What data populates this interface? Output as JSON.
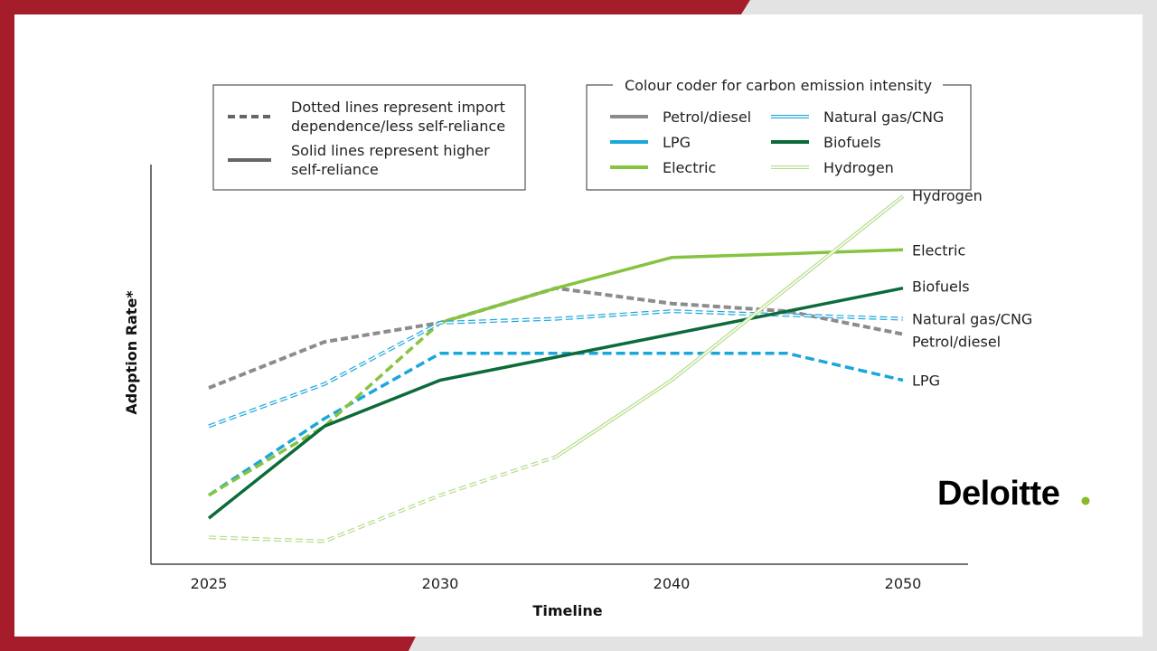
{
  "colors": {
    "frame_red": "#a51c2a",
    "frame_grey": "#e3e3e3",
    "petrol_diesel": "#8c8c8c",
    "lpg": "#1ba6dc",
    "electric": "#86c440",
    "natural_gas_cng": "#1ba6dc",
    "biofuels": "#0c6b3a",
    "hydrogen": "#b6dc8a",
    "brand_dot": "#86bc25"
  },
  "style_legend": {
    "dotted_text_line1": "Dotted lines represent import",
    "dotted_text_line2": "dependence/less self-reliance",
    "solid_text_line1": "Solid lines represent higher",
    "solid_text_line2": "self-reliance"
  },
  "colour_legend": {
    "title": "Colour coder for carbon emission intensity",
    "items": [
      {
        "label": "Petrol/diesel",
        "icon": "grey-solid-swatch"
      },
      {
        "label": "Natural gas/CNG",
        "icon": "blue-outline-swatch"
      },
      {
        "label": "LPG",
        "icon": "blue-solid-swatch"
      },
      {
        "label": "Biofuels",
        "icon": "dark-green-solid-swatch"
      },
      {
        "label": "Electric",
        "icon": "green-solid-swatch"
      },
      {
        "label": "Hydrogen",
        "icon": "light-green-outline-swatch"
      }
    ]
  },
  "brand": {
    "name": "Deloitte",
    "dot": "."
  },
  "chart_data": {
    "type": "line",
    "title": "",
    "xlabel": "Timeline",
    "ylabel": "Adoption Rate*",
    "x_ticks": [
      "2025",
      "2030",
      "2040",
      "2050"
    ],
    "x": [
      0,
      1,
      2,
      3,
      4,
      5,
      6
    ],
    "ylim": [
      0,
      100
    ],
    "grid": false,
    "series": [
      {
        "name": "Petrol/diesel",
        "color": "#8c8c8c",
        "style": "double-outline",
        "segments": [
          {
            "from": 0,
            "to": 6,
            "dashed": true
          }
        ],
        "values": [
          46,
          58,
          63,
          72,
          68,
          66,
          60
        ]
      },
      {
        "name": "LPG",
        "color": "#1ba6dc",
        "style": "solid",
        "segments": [
          {
            "from": 0,
            "to": 6,
            "dashed": true
          }
        ],
        "values": [
          18,
          38,
          55,
          55,
          55,
          55,
          48
        ]
      },
      {
        "name": "Electric",
        "color": "#86c440",
        "style": "solid",
        "segments": [
          {
            "from": 0,
            "to": 2,
            "dashed": true
          },
          {
            "from": 2,
            "to": 6,
            "dashed": false
          }
        ],
        "values": [
          18,
          36,
          63,
          72,
          80,
          81,
          82
        ]
      },
      {
        "name": "Natural gas/CNG",
        "color": "#1ba6dc",
        "style": "outline",
        "segments": [
          {
            "from": 0,
            "to": 6,
            "dashed": true
          }
        ],
        "values": [
          36,
          47,
          63,
          64,
          66,
          65,
          64
        ]
      },
      {
        "name": "Biofuels",
        "color": "#0c6b3a",
        "style": "solid",
        "segments": [
          {
            "from": 0,
            "to": 6,
            "dashed": false
          }
        ],
        "values": [
          12,
          36,
          48,
          54,
          60,
          66,
          72
        ]
      },
      {
        "name": "Hydrogen",
        "color": "#b6dc8a",
        "style": "outline",
        "segments": [
          {
            "from": 0,
            "to": 3,
            "dashed": true
          },
          {
            "from": 3,
            "to": 6,
            "dashed": false
          }
        ],
        "values": [
          7,
          6,
          18,
          28,
          48,
          72,
          96
        ]
      }
    ]
  }
}
